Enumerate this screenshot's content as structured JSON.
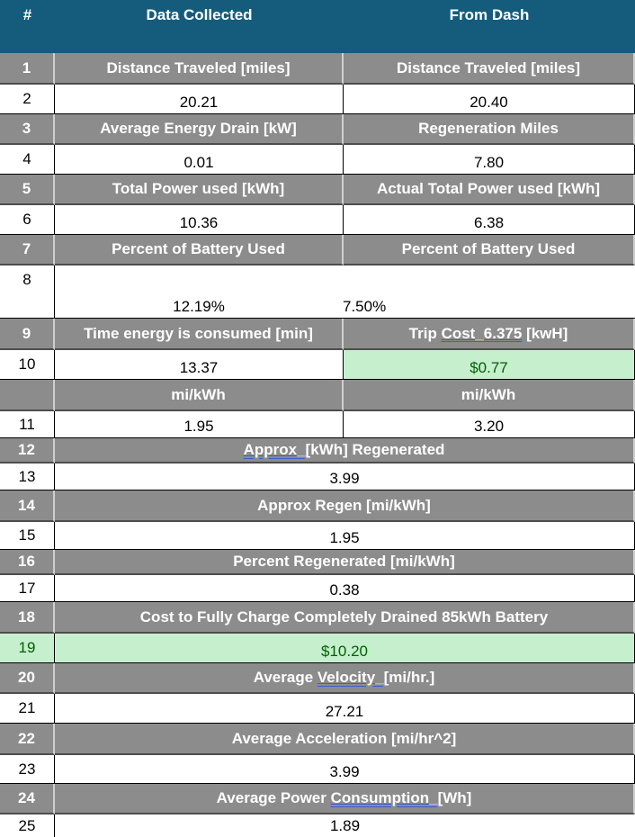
{
  "header": {
    "num": "#",
    "col1": "Data Collected",
    "col2": "From Dash"
  },
  "rows": {
    "r1": {
      "num": "1",
      "a": "Distance Traveled [miles]",
      "b": "Distance Traveled [miles]"
    },
    "r2": {
      "num": "2",
      "a": "20.21",
      "b": "20.40"
    },
    "r3": {
      "num": "3",
      "a": "Average Energy Drain [kW]",
      "b": "Regeneration Miles"
    },
    "r4": {
      "num": "4",
      "a": "0.01",
      "b": "7.80"
    },
    "r5": {
      "num": "5",
      "a": "Total Power used [kWh]",
      "b": "Actual Total Power used [kWh]"
    },
    "r6": {
      "num": "6",
      "a": "10.36",
      "b": "6.38"
    },
    "r7": {
      "num": "7",
      "a": "Percent of Battery Used",
      "b": "Percent of Battery Used"
    },
    "r8": {
      "num": "8",
      "a": "12.19%",
      "b": "7.50%"
    },
    "r9": {
      "num": "9",
      "a": "Time energy is consumed [min]",
      "b_pre": "Trip ",
      "b_u": "Cost_6.375",
      "b_post": " [kwH]"
    },
    "r10": {
      "num": "10",
      "a": "13.37",
      "b": "$0.77"
    },
    "r10b": {
      "num": "",
      "a": "mi/kWh",
      "b": "mi/kWh"
    },
    "r11": {
      "num": "11",
      "a": "1.95",
      "b": "3.20"
    },
    "r12": {
      "num": "12",
      "u": "Approx_[",
      "rest": "kWh] Regenerated"
    },
    "r13": {
      "num": "13",
      "v": "3.99"
    },
    "r14": {
      "num": "14",
      "v": "Approx Regen [mi/kWh]"
    },
    "r15": {
      "num": "15",
      "v": "1.95"
    },
    "r16": {
      "num": "16",
      "v": "Percent Regenerated [mi/kWh]"
    },
    "r17": {
      "num": "17",
      "v": "0.38"
    },
    "r18": {
      "num": "18",
      "v": "Cost to Fully Charge Completely Drained 85kWh Battery"
    },
    "r19": {
      "num": "19",
      "v": "$10.20"
    },
    "r20": {
      "num": "20",
      "pre": "Average ",
      "u": "Velocity_[",
      "rest": "mi/hr.]"
    },
    "r21": {
      "num": "21",
      "v": "27.21"
    },
    "r22": {
      "num": "22",
      "v": "Average Acceleration [mi/hr^2]"
    },
    "r23": {
      "num": "23",
      "v": "3.99"
    },
    "r24": {
      "num": "24",
      "pre": "Average Power ",
      "u": "Consumption_[",
      "rest": "Wh]"
    },
    "r25": {
      "num": "25",
      "v": "1.89"
    }
  },
  "colors": {
    "header": "#155c7c",
    "label": "#8c8c8c",
    "highlight": "#c6efce",
    "highlight_text": "#006100"
  }
}
